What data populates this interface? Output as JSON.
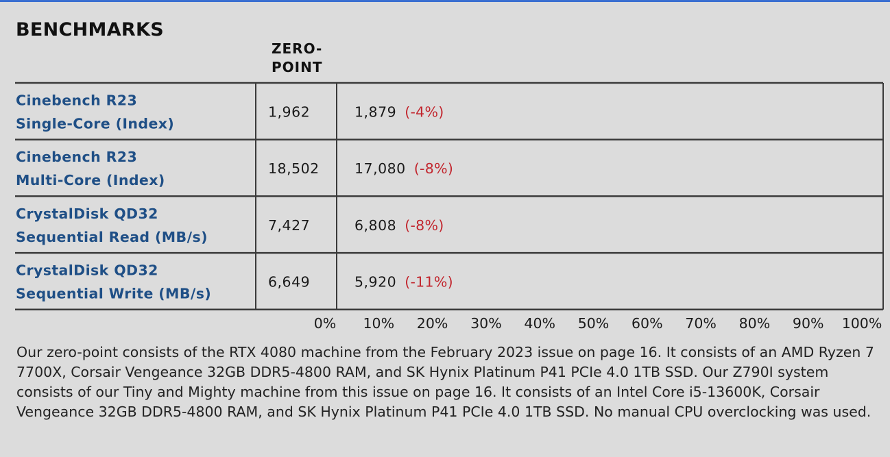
{
  "chart_data": {
    "type": "table",
    "title": "BENCHMARKS",
    "zero_point_header": [
      "ZERO-",
      "POINT"
    ],
    "rows": [
      {
        "label": [
          "Cinebench R23",
          "Single-Core (Index)"
        ],
        "zero_point": "1,962",
        "value": "1,879",
        "delta": "(-4%)",
        "delta_pct": -4
      },
      {
        "label": [
          "Cinebench R23",
          "Multi-Core (Index)"
        ],
        "zero_point": "18,502",
        "value": "17,080",
        "delta": "(-8%)",
        "delta_pct": -8
      },
      {
        "label": [
          "CrystalDisk QD32",
          "Sequential Read (MB/s)"
        ],
        "zero_point": "7,427",
        "value": "6,808",
        "delta": "(-8%)",
        "delta_pct": -8
      },
      {
        "label": [
          "CrystalDisk QD32",
          "Sequential Write (MB/s)"
        ],
        "zero_point": "6,649",
        "value": "5,920",
        "delta": "(-11%)",
        "delta_pct": -11
      }
    ],
    "x_ticks": [
      "0%",
      "10%",
      "20%",
      "30%",
      "40%",
      "50%",
      "60%",
      "70%",
      "80%",
      "90%",
      "100%"
    ],
    "xlim": [
      0,
      100
    ]
  },
  "notes": "Our zero-point consists of the RTX 4080 machine from the February 2023 issue on page 16. It consists of an AMD Ryzen 7 7700X, Corsair Vengeance 32GB DDR5-4800 RAM, and SK Hynix Platinum P41 PCIe 4.0 1TB SSD. Our Z790I system consists of our Tiny and Mighty machine from this issue on page 16. It consists of an Intel Core i5-13600K, Corsair Vengeance 32GB DDR5-4800 RAM, and SK Hynix Platinum P41 PCIe 4.0 1TB SSD. No manual CPU overclocking was used.",
  "colors": {
    "label": "#1f4f86",
    "delta": "#c2262e",
    "grid": "#3a3a3a",
    "text": "#1a1a1a"
  }
}
